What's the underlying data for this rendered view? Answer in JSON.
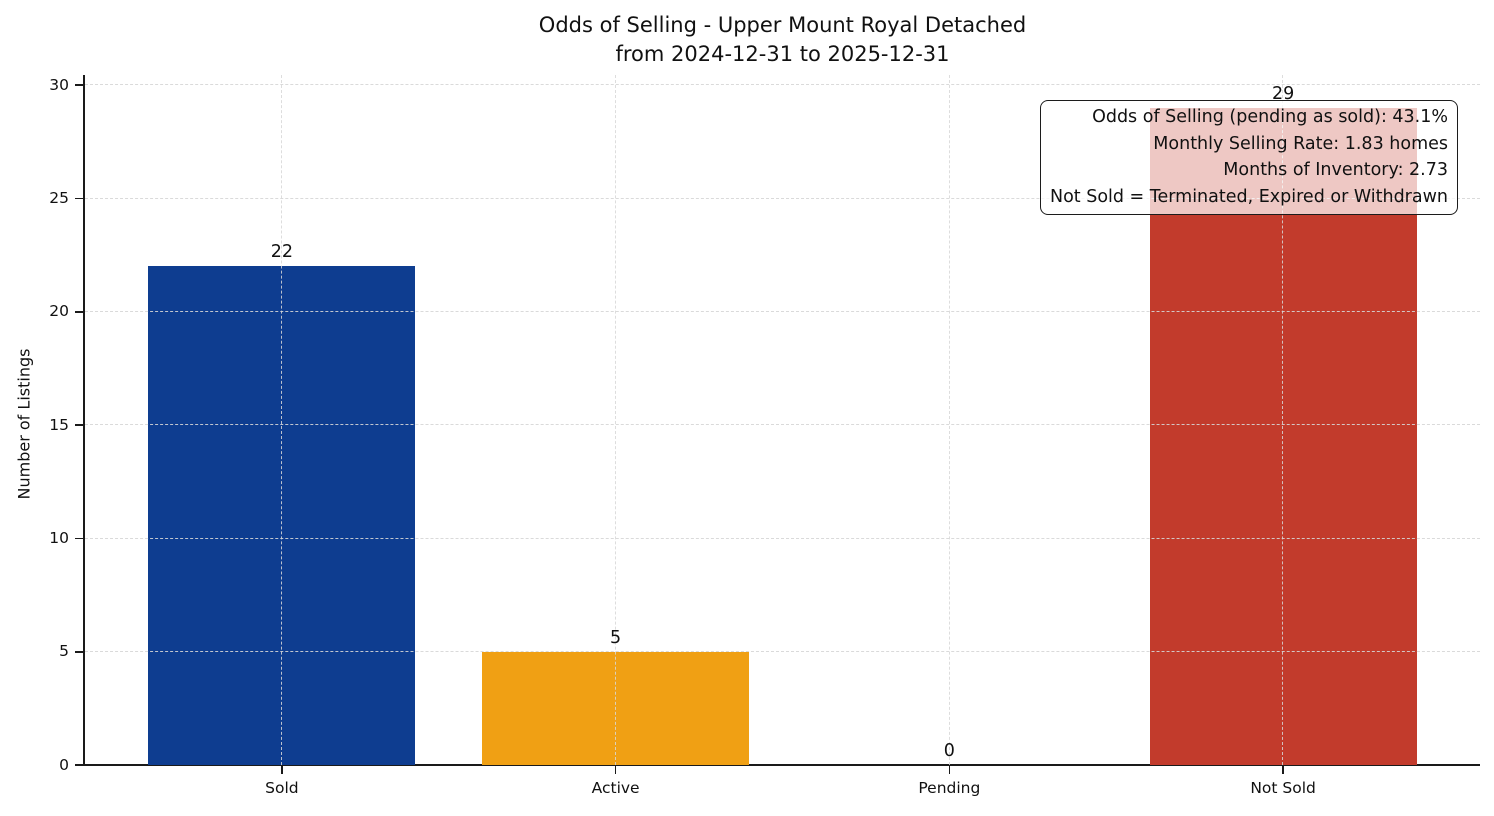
{
  "figure": {
    "title_line1": "Odds of Selling - Upper Mount Royal Detached",
    "title_line2": "from 2024-12-31 to 2025-12-31",
    "ylabel": "Number of Listings"
  },
  "annotation": {
    "lines": [
      "Odds of Selling (pending as sold): 43.1%",
      "Monthly Selling Rate: 1.83 homes",
      "Months of Inventory: 2.73",
      "Not Sold = Terminated, Expired or Withdrawn"
    ]
  },
  "chart_data": {
    "type": "bar",
    "title": "Odds of Selling - Upper Mount Royal Detached\nfrom 2024-12-31 to 2025-12-31",
    "categories": [
      "Sold",
      "Active",
      "Pending",
      "Not Sold"
    ],
    "values": [
      22,
      5,
      0,
      29
    ],
    "bar_colors": [
      "#0e3d90",
      "#f0a014",
      null,
      "#c23b2c"
    ],
    "value_labels": [
      "22",
      "5",
      "0",
      "29"
    ],
    "xlabel": "",
    "ylabel": "Number of Listings",
    "ylim": [
      0,
      30.45
    ],
    "yticks": [
      0,
      5,
      10,
      15,
      20,
      25,
      30
    ],
    "grid": true,
    "grid_style": "dashed",
    "legend": null,
    "annotation_lines": [
      "Odds of Selling (pending as sold): 43.1%",
      "Monthly Selling Rate: 1.83 homes",
      "Months of Inventory: 2.73",
      "Not Sold = Terminated, Expired or Withdrawn"
    ]
  }
}
